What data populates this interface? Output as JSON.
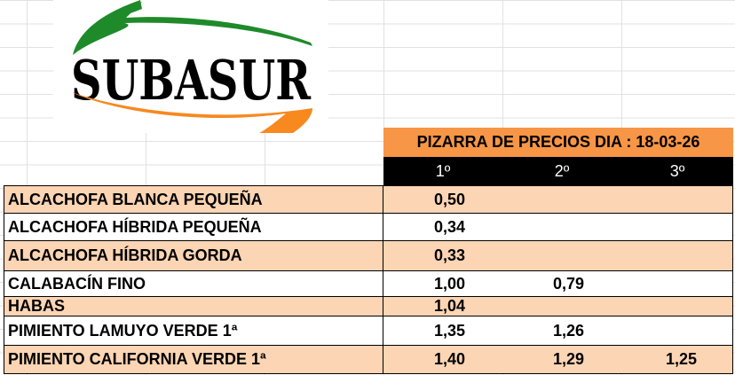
{
  "logo": {
    "text": "SUBASUR",
    "colors": {
      "green": "#1f8a2a",
      "orange": "#f7891f",
      "text": "#000000"
    }
  },
  "board": {
    "title": "PIZARRA DE PRECIOS DIA : 18-03-26",
    "title_bg": "#f79646",
    "columns": [
      "1º",
      "2º",
      "3º"
    ]
  },
  "colors": {
    "row_alt": "#fcd5b4",
    "row_plain": "#ffffff"
  },
  "rows": [
    {
      "product": "ALCACHOFA BLANCA PEQUEÑA",
      "p1": "0,50",
      "p2": "",
      "p3": ""
    },
    {
      "product": "ALCACHOFA HÍBRIDA PEQUEÑA",
      "p1": "0,34",
      "p2": "",
      "p3": ""
    },
    {
      "product": "ALCACHOFA HÍBRIDA GORDA",
      "p1": "0,33",
      "p2": "",
      "p3": ""
    },
    {
      "product": "CALABACÍN FINO",
      "p1": "1,00",
      "p2": "0,79",
      "p3": ""
    },
    {
      "product": "HABAS",
      "p1": "1,04",
      "p2": "",
      "p3": ""
    },
    {
      "product": "PIMIENTO LAMUYO VERDE 1ª",
      "p1": "1,35",
      "p2": "1,26",
      "p3": ""
    },
    {
      "product": "PIMIENTO CALIFORNIA VERDE 1ª",
      "p1": "1,40",
      "p2": "1,29",
      "p3": "1,25"
    }
  ]
}
